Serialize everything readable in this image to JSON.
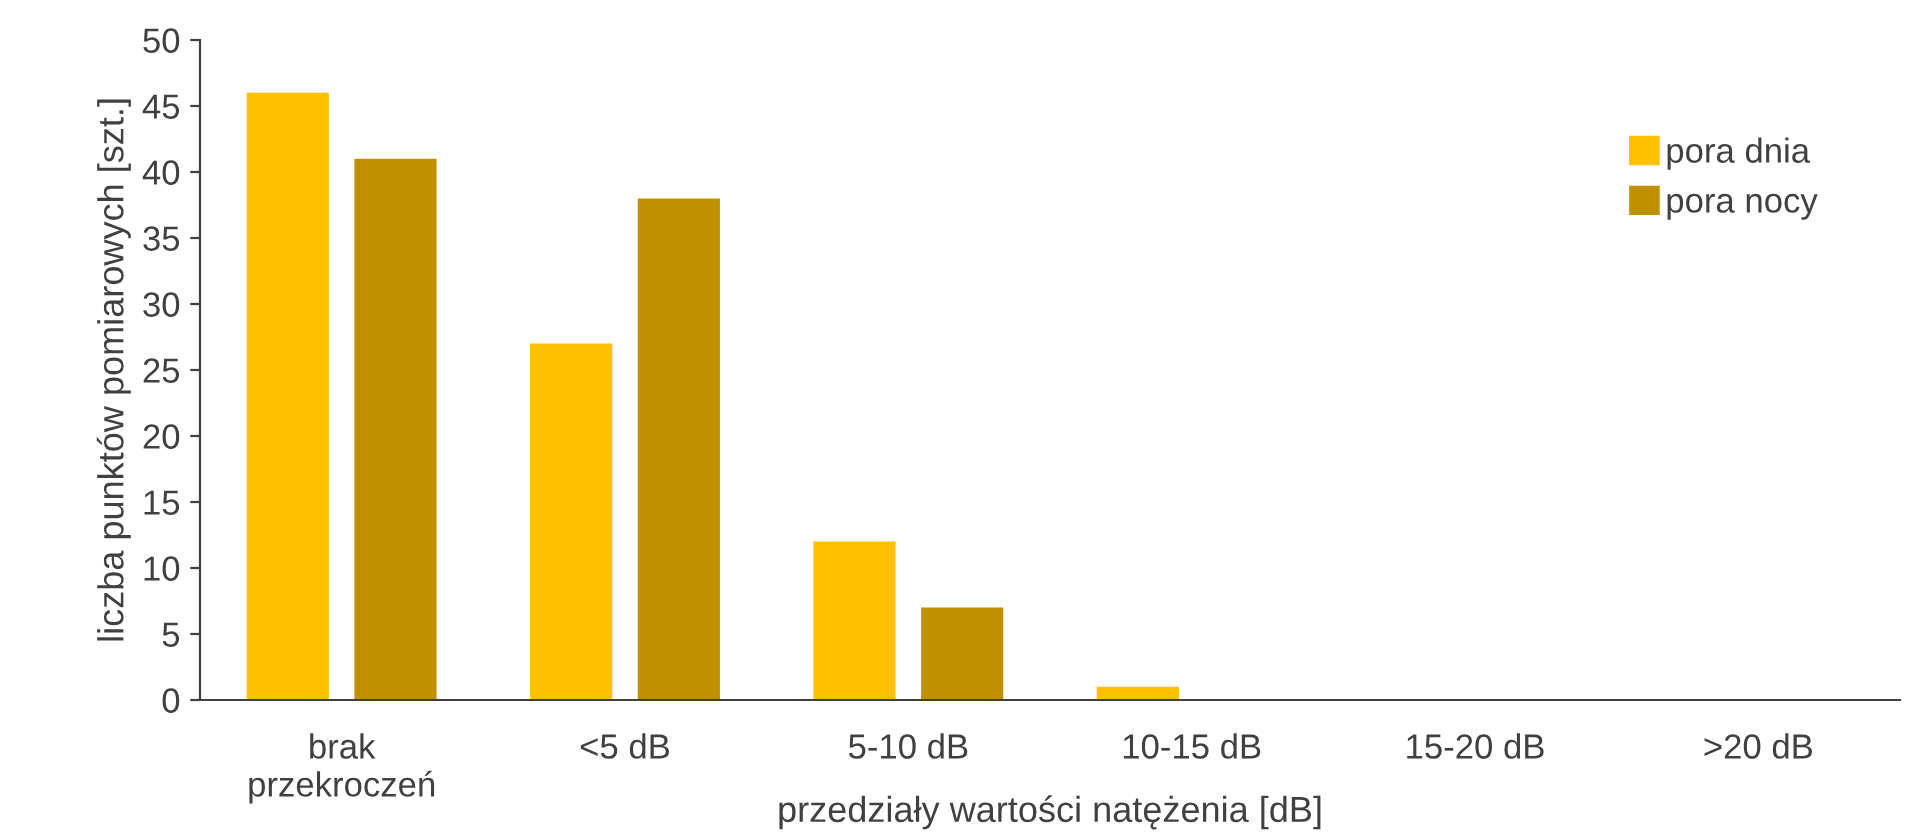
{
  "chart_data": {
    "type": "bar",
    "xlabel": "przedziały wartości natężenia [dB]",
    "ylabel": "liczba punktów pomiarowych [szt.]",
    "categories": [
      "brak\nprzekroczeń",
      "<5 dB",
      "5-10 dB",
      "10-15 dB",
      "15-20 dB",
      ">20 dB"
    ],
    "series": [
      {
        "name": "pora dnia",
        "color": "#ffc000",
        "values": [
          46,
          27,
          12,
          1,
          0,
          0
        ]
      },
      {
        "name": "pora nocy",
        "color": "#bf9000",
        "values": [
          41,
          38,
          7,
          0,
          0,
          0
        ]
      }
    ],
    "ylim": [
      0,
      50
    ],
    "yticks": [
      0,
      5,
      10,
      15,
      20,
      25,
      30,
      35,
      40,
      45,
      50
    ],
    "grid": false,
    "legend": "top right"
  }
}
